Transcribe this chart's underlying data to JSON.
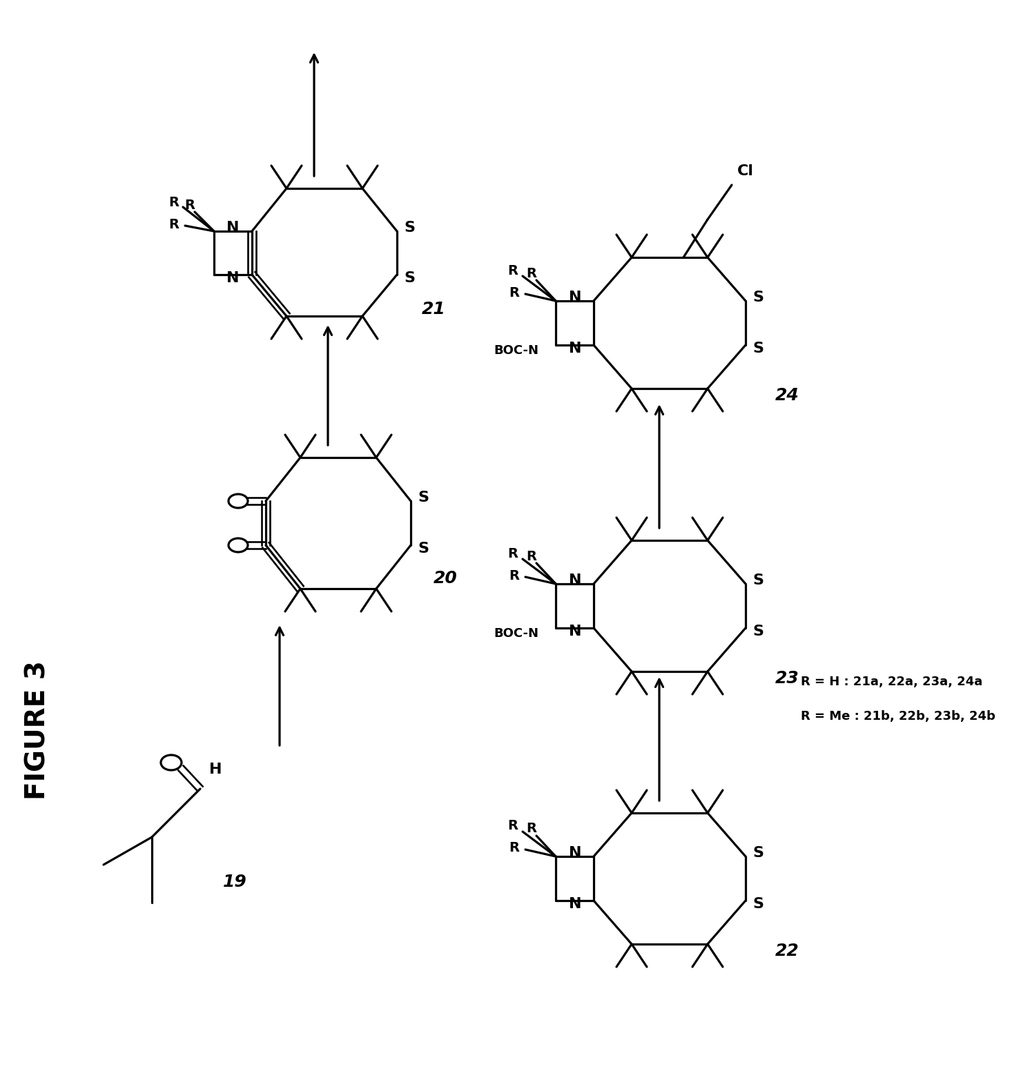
{
  "title": "FIGURE 3",
  "background": "#ffffff",
  "lw": 2.3,
  "lw2": 1.9,
  "fs": 16,
  "fs_label": 18,
  "fs_title": 28,
  "legend_line1": "R = H : 21a, 22a, 23a, 24a",
  "legend_line2": "R = Me : 21b, 22b, 23b, 24b"
}
